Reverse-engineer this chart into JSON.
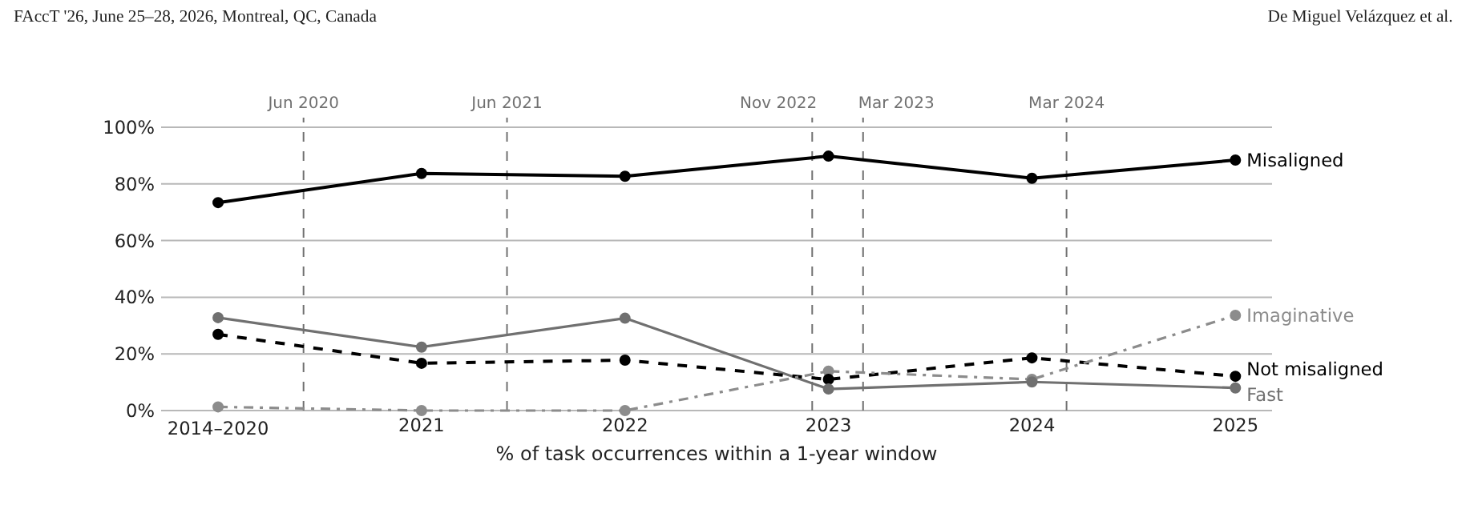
{
  "chart_data": {
    "type": "line",
    "xlabel": "% of task occurrences within a 1-year window",
    "x": [
      2020,
      2021,
      2022,
      2023,
      2024,
      2025
    ],
    "xlim": [
      2019.72,
      2025.18
    ],
    "xticks": [
      {
        "value": 2020,
        "label": "2014–2020"
      },
      {
        "value": 2021,
        "label": "2021"
      },
      {
        "value": 2022,
        "label": "2022"
      },
      {
        "value": 2023,
        "label": "2023"
      },
      {
        "value": 2024,
        "label": "2024"
      },
      {
        "value": 2025,
        "label": "2025"
      }
    ],
    "ylim": [
      0,
      100
    ],
    "yticks": [
      {
        "value": 0,
        "label": "0%"
      },
      {
        "value": 20,
        "label": "20%"
      },
      {
        "value": 40,
        "label": "40%"
      },
      {
        "value": 60,
        "label": "60%"
      },
      {
        "value": 80,
        "label": "80%"
      },
      {
        "value": 100,
        "label": "100%"
      }
    ],
    "grid": "y",
    "legend": false,
    "marker": "circle",
    "series": [
      {
        "name": "Misaligned",
        "color": "#000000",
        "line_style": "solid",
        "values": [
          73.4,
          83.7,
          82.7,
          89.8,
          82.0,
          88.4
        ]
      },
      {
        "name": "Fast",
        "color": "#707070",
        "line_style": "solid",
        "values": [
          32.8,
          22.4,
          32.6,
          7.6,
          10.1,
          8.0
        ]
      },
      {
        "name": "Not misaligned",
        "color": "#000000",
        "line_style": "dashed",
        "values": [
          26.9,
          16.7,
          17.8,
          11.0,
          18.6,
          12.1
        ]
      },
      {
        "name": "Imaginative",
        "color": "#8c8c8c",
        "line_style": "dashdot",
        "values": [
          1.3,
          0,
          0,
          13.9,
          11,
          33.6
        ]
      }
    ],
    "ref_lines": [
      {
        "axis": "x",
        "value": 2020.42,
        "label": "Jun 2020",
        "color": "#707070",
        "line_style": "dashed"
      },
      {
        "axis": "x",
        "value": 2021.42,
        "label": "Jun 2021",
        "color": "#707070",
        "line_style": "dashed"
      },
      {
        "axis": "x",
        "value": 2022.92,
        "label": "Nov 2022",
        "color": "#707070",
        "line_style": "dashed"
      },
      {
        "axis": "x",
        "value": 2023.17,
        "label": "Mar 2023",
        "color": "#707070",
        "line_style": "dashed"
      },
      {
        "axis": "x",
        "value": 2024.17,
        "label": "Mar 2024",
        "color": "#707070",
        "line_style": "dashed"
      }
    ],
    "annotations": [
      "FAccT '26, June 25–28, 2026, Montreal, QC, Canada",
      "De Miguel Velázquez et al."
    ]
  }
}
